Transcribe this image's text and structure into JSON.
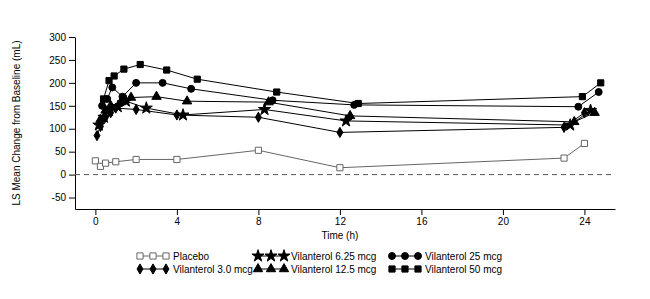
{
  "chart_data": {
    "type": "line",
    "xlabel": "Time (h)",
    "ylabel": "LS Mean Change from Baseline (mL)",
    "xlim": [
      -1,
      25.5
    ],
    "xticks": [
      0,
      4,
      8,
      12,
      16,
      20,
      24
    ],
    "ylim": [
      -75,
      300
    ],
    "yticks": [
      -50,
      0,
      50,
      100,
      150,
      200,
      250,
      300
    ],
    "baseline": 0,
    "legend": "bottom",
    "series": [
      {
        "name": "Placebo",
        "color": "#666666",
        "marker": "square-open",
        "x": [
          0,
          0.25,
          0.5,
          1,
          2,
          4,
          8,
          12,
          23,
          24
        ],
        "values": [
          30,
          18,
          25,
          28,
          33,
          33,
          53,
          15,
          36,
          68
        ]
      },
      {
        "name": "Vilanterol 3.0 mcg",
        "color": "#000000",
        "marker": "diamond",
        "x": [
          0.08,
          0.25,
          0.5,
          0.75,
          1,
          2,
          4,
          8,
          12,
          23,
          24
        ],
        "values": [
          85,
          105,
          125,
          135,
          145,
          142,
          130,
          125,
          92,
          103,
          135
        ]
      },
      {
        "name": "Vilanterol 6.25 mcg",
        "color": "#000000",
        "marker": "star",
        "x": [
          0.17,
          0.42,
          0.67,
          1.1,
          1.5,
          2.5,
          4.3,
          8.3,
          12.3,
          23.3,
          24.3
        ],
        "values": [
          108,
          125,
          140,
          148,
          160,
          145,
          130,
          142,
          117,
          108,
          140
        ]
      },
      {
        "name": "Vilanterol 12.5 mcg",
        "color": "#000000",
        "marker": "triangle",
        "x": [
          0.25,
          0.5,
          0.75,
          1.25,
          1.75,
          3,
          4.5,
          8.5,
          12.5,
          23.5,
          24.5
        ],
        "values": [
          120,
          140,
          150,
          158,
          168,
          170,
          160,
          158,
          128,
          115,
          135
        ]
      },
      {
        "name": "Vilanterol 25 mcg",
        "color": "#000000",
        "marker": "circle",
        "x": [
          0.33,
          0.58,
          0.83,
          1.33,
          2,
          3.3,
          4.7,
          8.7,
          12.7,
          23.7,
          24.7
        ],
        "values": [
          150,
          165,
          190,
          170,
          200,
          200,
          187,
          162,
          152,
          148,
          180
        ]
      },
      {
        "name": "Vilanterol 50 mcg",
        "color": "#000000",
        "marker": "square",
        "x": [
          0.4,
          0.67,
          0.92,
          1.4,
          2.2,
          3.5,
          5,
          8.9,
          12.9,
          23.9,
          24.8
        ],
        "values": [
          165,
          205,
          215,
          230,
          240,
          228,
          208,
          180,
          155,
          170,
          200
        ]
      }
    ]
  }
}
